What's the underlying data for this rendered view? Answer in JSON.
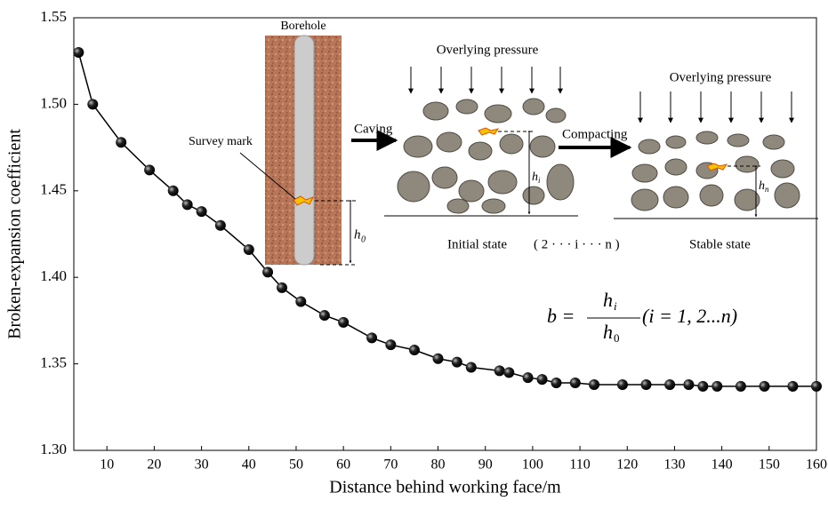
{
  "chart_data": {
    "type": "line",
    "x_label": "Distance behind working face/m",
    "y_label": "Broken-expansion coefficient",
    "xlim": [
      3,
      160
    ],
    "xticks": [
      10,
      20,
      30,
      40,
      50,
      60,
      70,
      80,
      90,
      100,
      110,
      120,
      130,
      140,
      150,
      160
    ],
    "ylim": [
      1.3,
      1.55
    ],
    "yticks": [
      {
        "value": 1.3,
        "label": "1.30"
      },
      1.35,
      {
        "value": 1.4,
        "label": "1.40"
      },
      1.45,
      {
        "value": 1.5,
        "label": "1.50"
      },
      1.55
    ],
    "series": [
      {
        "color": "#000000",
        "x": [
          4,
          7,
          13,
          19,
          24,
          27,
          30,
          34,
          40,
          44,
          47,
          51,
          56,
          60,
          66,
          70,
          75,
          80,
          84,
          87,
          93,
          95,
          99,
          102,
          105,
          109,
          113,
          119,
          124,
          129,
          133,
          136,
          139,
          144,
          149,
          155,
          160
        ],
        "values": [
          1.53,
          1.5,
          1.478,
          1.462,
          1.45,
          1.442,
          1.438,
          1.43,
          1.416,
          1.403,
          1.394,
          1.386,
          1.378,
          1.374,
          1.365,
          1.361,
          1.358,
          1.353,
          1.351,
          1.348,
          1.346,
          1.345,
          1.342,
          1.341,
          1.339,
          1.339,
          1.338,
          1.338,
          1.338,
          1.338,
          1.338,
          1.337,
          1.337,
          1.337,
          1.337,
          1.337,
          1.337
        ]
      }
    ],
    "annotations": {
      "borehole": "Borehole",
      "survey": "Survey mark",
      "caving": "Caving",
      "pressure1": "Overlying pressure",
      "pressure2": "Overlying pressure",
      "compacting": "Compacting",
      "initial": "Initial state",
      "sequence": "( 2 ·  ·  ·  i  ·  ·  ·  n )",
      "stable": "Stable state",
      "h0": "h",
      "h0sub": "0",
      "hi": "h",
      "hisub": "i",
      "hn": "h",
      "hnsub": "n",
      "formula_b": "b =",
      "formula_num": "h",
      "formula_numsub": "i",
      "formula_den": "h",
      "formula_densub": "0",
      "formula_tail": "(i = 1, 2...n)"
    }
  }
}
